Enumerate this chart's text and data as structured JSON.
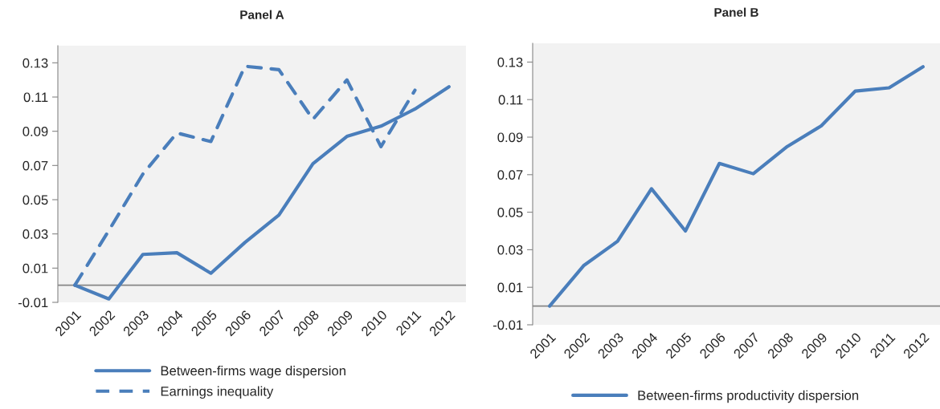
{
  "chart_data": [
    {
      "type": "line",
      "title": "Panel A",
      "categories": [
        "2001",
        "2002",
        "2003",
        "2004",
        "2005",
        "2006",
        "2007",
        "2008",
        "2009",
        "2010",
        "2011",
        "2012"
      ],
      "series": [
        {
          "name": "Between-firms wage dispersion",
          "color": "#4a7ebb",
          "line_style": "solid",
          "values": [
            0,
            -0.008,
            0.018,
            0.019,
            0.007,
            0.025,
            0.041,
            0.071,
            0.087,
            0.093,
            0.103,
            0.116
          ]
        },
        {
          "name": "Earnings inequality",
          "color": "#4a7ebb",
          "line_style": "dashed",
          "values": [
            0,
            0.032,
            0.065,
            0.089,
            0.084,
            0.128,
            0.126,
            0.097,
            0.12,
            0.081,
            0.114,
            null
          ]
        }
      ],
      "ylim": [
        -0.01,
        0.14
      ],
      "yticks": [
        -0.01,
        0.01,
        0.03,
        0.05,
        0.07,
        0.09,
        0.11,
        0.13
      ],
      "ref_lines": [
        {
          "axis": "y",
          "value": 0,
          "color": "#868686"
        }
      ],
      "grid": false,
      "legend": "bottom"
    },
    {
      "type": "line",
      "title": "Panel B",
      "categories": [
        "2001",
        "2002",
        "2003",
        "2004",
        "2005",
        "2006",
        "2007",
        "2008",
        "2009",
        "2010",
        "2011",
        "2012"
      ],
      "series": [
        {
          "name": "Between-firms productivity dispersion",
          "color": "#4a7ebb",
          "line_style": "solid",
          "values": [
            0,
            0.0215,
            0.0345,
            0.0625,
            0.04,
            0.076,
            0.0705,
            0.085,
            0.096,
            0.1145,
            0.1163,
            0.1275
          ]
        }
      ],
      "ylim": [
        -0.01,
        0.14
      ],
      "yticks": [
        -0.01,
        0.01,
        0.03,
        0.05,
        0.07,
        0.09,
        0.11,
        0.13
      ],
      "ref_lines": [
        {
          "axis": "y",
          "value": 0,
          "color": "#868686"
        }
      ],
      "grid": false,
      "legend": "bottom"
    }
  ]
}
